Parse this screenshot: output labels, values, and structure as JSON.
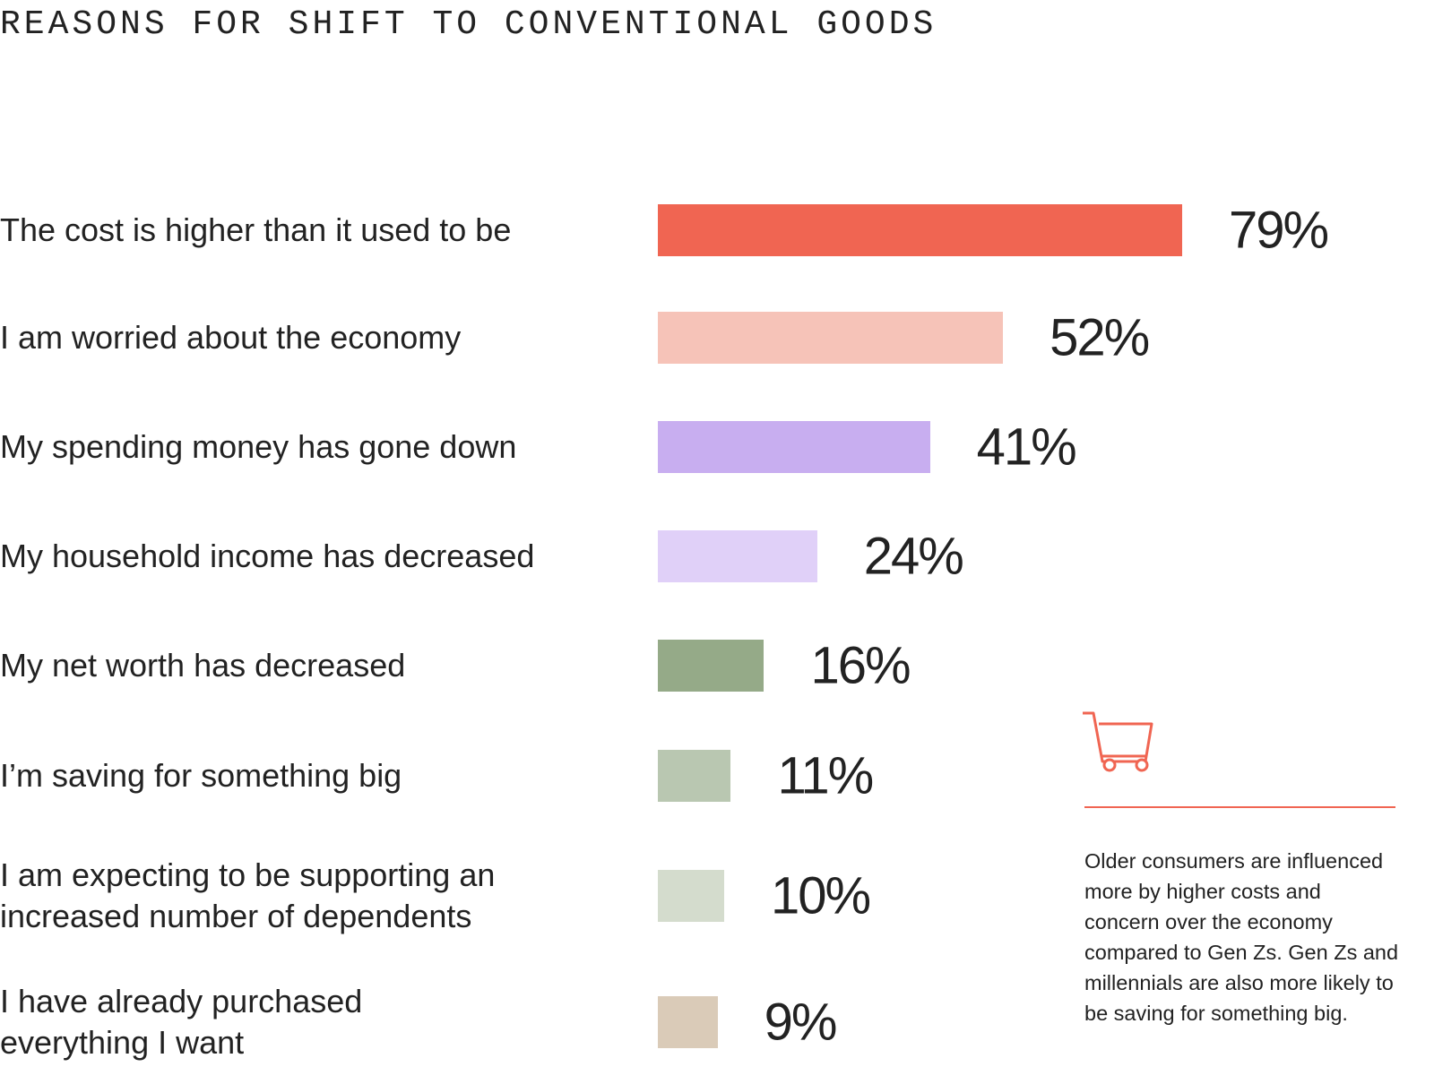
{
  "chart_data": {
    "type": "bar",
    "orientation": "horizontal",
    "title": "REASONS FOR SHIFT TO CONVENTIONAL GOODS",
    "categories": [
      "The cost is higher than it used to be",
      "I am worried about the economy",
      "My spending money has gone down",
      "My household income has decreased",
      "My net worth has decreased",
      "I’m saving for something big",
      "I am expecting to be supporting an\nincreased number of dependents",
      "I have already purchased\neverything I want"
    ],
    "values": [
      79,
      52,
      41,
      24,
      16,
      11,
      10,
      9
    ],
    "value_labels": [
      "79%",
      "52%",
      "41%",
      "24%",
      "16%",
      "11%",
      "10%",
      "9%"
    ],
    "colors": [
      "#f06552",
      "#f6c3b8",
      "#c8aef0",
      "#e0d0f8",
      "#95aa88",
      "#b9c7b1",
      "#d4dccd",
      "#dacbb8"
    ],
    "annotation": "Older consumers are influenced more by higher costs and concern over the economy compared to Gen Zs. Gen Zs and millennials are also more likely to be saving for something big."
  }
}
